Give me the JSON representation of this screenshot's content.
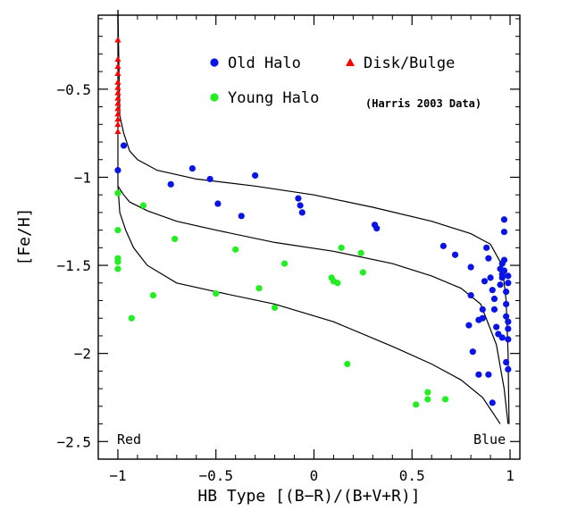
{
  "chart_data": {
    "type": "scatter",
    "title": "",
    "xlabel": "HB Type [(B−R)/(B+V+R)]",
    "ylabel": "[Fe/H]",
    "xlim": [
      -1.1,
      1.05
    ],
    "ylim": [
      -2.6,
      -0.08
    ],
    "y_inverted": true,
    "xticks": [
      -1,
      -0.5,
      0,
      0.5,
      1
    ],
    "xtick_labels": [
      "−1",
      "−0.5",
      "0",
      "0.5",
      "1"
    ],
    "yticks": [
      -0.5,
      -1,
      -1.5,
      -2,
      -2.5
    ],
    "ytick_labels": [
      "−0.5",
      "−1",
      "−1.5",
      "−2",
      "−2.5"
    ],
    "grid": false,
    "legend": {
      "placement": "top",
      "entries": [
        {
          "label": "Old Halo",
          "color": "#0a14e6",
          "marker": "circle"
        },
        {
          "label": "Disk/Bulge",
          "color": "#ff0000",
          "marker": "triangle"
        },
        {
          "label": "Young Halo",
          "color": "#22ee22",
          "marker": "circle"
        }
      ],
      "note": "(Harris 2003 Data)"
    },
    "annotations": {
      "left": "Red",
      "right": "Blue"
    },
    "series": [
      {
        "name": "Old Halo",
        "color": "#0a14e6",
        "marker": "circle",
        "points": [
          [
            -1.0,
            -0.96
          ],
          [
            -0.97,
            -0.82
          ],
          [
            -0.73,
            -1.04
          ],
          [
            -0.62,
            -0.95
          ],
          [
            -0.53,
            -1.01
          ],
          [
            -0.49,
            -1.15
          ],
          [
            -0.37,
            -1.22
          ],
          [
            -0.3,
            -0.99
          ],
          [
            -0.08,
            -1.12
          ],
          [
            -0.07,
            -1.16
          ],
          [
            -0.06,
            -1.2
          ],
          [
            0.31,
            -1.27
          ],
          [
            0.32,
            -1.29
          ],
          [
            0.66,
            -1.39
          ],
          [
            0.72,
            -1.44
          ],
          [
            0.79,
            -1.84
          ],
          [
            0.8,
            -1.51
          ],
          [
            0.8,
            -1.67
          ],
          [
            0.81,
            -1.99
          ],
          [
            0.84,
            -1.81
          ],
          [
            0.84,
            -2.12
          ],
          [
            0.86,
            -1.75
          ],
          [
            0.86,
            -1.8
          ],
          [
            0.87,
            -1.59
          ],
          [
            0.88,
            -1.4
          ],
          [
            0.89,
            -1.46
          ],
          [
            0.89,
            -2.12
          ],
          [
            0.9,
            -1.57
          ],
          [
            0.91,
            -1.64
          ],
          [
            0.91,
            -2.28
          ],
          [
            0.92,
            -1.69
          ],
          [
            0.92,
            -1.75
          ],
          [
            0.93,
            -1.85
          ],
          [
            0.94,
            -1.89
          ],
          [
            0.95,
            -1.52
          ],
          [
            0.95,
            -1.61
          ],
          [
            0.96,
            -1.49
          ],
          [
            0.96,
            -1.55
          ],
          [
            0.96,
            -1.57
          ],
          [
            0.96,
            -1.91
          ],
          [
            0.97,
            -1.24
          ],
          [
            0.97,
            -1.31
          ],
          [
            0.97,
            -1.47
          ],
          [
            0.97,
            -1.53
          ],
          [
            0.98,
            -1.65
          ],
          [
            0.98,
            -1.72
          ],
          [
            0.98,
            -1.79
          ],
          [
            0.98,
            -2.05
          ],
          [
            0.99,
            -1.56
          ],
          [
            0.99,
            -1.6
          ],
          [
            0.99,
            -1.82
          ],
          [
            0.99,
            -1.86
          ],
          [
            0.99,
            -1.92
          ],
          [
            0.99,
            -2.09
          ]
        ]
      },
      {
        "name": "Disk/Bulge",
        "color": "#ff0000",
        "marker": "triangle",
        "points": [
          [
            -1.0,
            -0.22
          ],
          [
            -1.0,
            -0.33
          ],
          [
            -1.0,
            -0.37
          ],
          [
            -1.0,
            -0.41
          ],
          [
            -1.0,
            -0.46
          ],
          [
            -1.0,
            -0.49
          ],
          [
            -1.0,
            -0.52
          ],
          [
            -1.0,
            -0.55
          ],
          [
            -1.0,
            -0.58
          ],
          [
            -1.0,
            -0.61
          ],
          [
            -1.0,
            -0.64
          ],
          [
            -1.0,
            -0.67
          ],
          [
            -1.0,
            -0.7
          ],
          [
            -1.0,
            -0.74
          ]
        ]
      },
      {
        "name": "Young Halo",
        "color": "#22ee22",
        "marker": "circle",
        "points": [
          [
            -1.0,
            -1.09
          ],
          [
            -1.0,
            -1.3
          ],
          [
            -1.0,
            -1.46
          ],
          [
            -1.0,
            -1.48
          ],
          [
            -1.0,
            -1.52
          ],
          [
            -0.93,
            -1.8
          ],
          [
            -0.87,
            -1.16
          ],
          [
            -0.82,
            -1.67
          ],
          [
            -0.71,
            -1.35
          ],
          [
            -0.5,
            -1.66
          ],
          [
            -0.4,
            -1.41
          ],
          [
            -0.28,
            -1.63
          ],
          [
            -0.2,
            -1.74
          ],
          [
            -0.15,
            -1.49
          ],
          [
            0.09,
            -1.57
          ],
          [
            0.1,
            -1.59
          ],
          [
            0.12,
            -1.6
          ],
          [
            0.14,
            -1.4
          ],
          [
            0.17,
            -2.06
          ],
          [
            0.24,
            -1.43
          ],
          [
            0.25,
            -1.54
          ],
          [
            0.52,
            -2.29
          ],
          [
            0.58,
            -2.22
          ],
          [
            0.58,
            -2.26
          ],
          [
            0.67,
            -2.26
          ]
        ]
      }
    ],
    "model_curves": [
      {
        "points": [
          [
            -1.0,
            -0.05
          ],
          [
            -0.99,
            -0.65
          ],
          [
            -0.97,
            -0.75
          ],
          [
            -0.94,
            -0.85
          ],
          [
            -0.9,
            -0.9
          ],
          [
            -0.8,
            -0.96
          ],
          [
            -0.6,
            -1.01
          ],
          [
            -0.3,
            -1.05
          ],
          [
            0.0,
            -1.1
          ],
          [
            0.3,
            -1.17
          ],
          [
            0.6,
            -1.25
          ],
          [
            0.8,
            -1.32
          ],
          [
            0.9,
            -1.38
          ],
          [
            0.96,
            -1.5
          ],
          [
            0.98,
            -1.7
          ],
          [
            0.99,
            -2.0
          ],
          [
            0.995,
            -2.4
          ]
        ]
      },
      {
        "points": [
          [
            -1.0,
            -0.05
          ],
          [
            -1.0,
            -1.05
          ],
          [
            -0.97,
            -1.1
          ],
          [
            -0.94,
            -1.14
          ],
          [
            -0.85,
            -1.19
          ],
          [
            -0.7,
            -1.25
          ],
          [
            -0.5,
            -1.3
          ],
          [
            -0.2,
            -1.37
          ],
          [
            0.1,
            -1.42
          ],
          [
            0.4,
            -1.49
          ],
          [
            0.6,
            -1.56
          ],
          [
            0.75,
            -1.63
          ],
          [
            0.85,
            -1.72
          ],
          [
            0.93,
            -1.95
          ],
          [
            0.97,
            -2.2
          ],
          [
            0.99,
            -2.4
          ]
        ]
      },
      {
        "points": [
          [
            -1.0,
            -1.05
          ],
          [
            -0.99,
            -1.2
          ],
          [
            -0.96,
            -1.3
          ],
          [
            -0.92,
            -1.4
          ],
          [
            -0.85,
            -1.5
          ],
          [
            -0.7,
            -1.6
          ],
          [
            -0.5,
            -1.65
          ],
          [
            -0.2,
            -1.72
          ],
          [
            0.1,
            -1.82
          ],
          [
            0.4,
            -1.96
          ],
          [
            0.6,
            -2.06
          ],
          [
            0.75,
            -2.15
          ],
          [
            0.86,
            -2.25
          ],
          [
            0.92,
            -2.35
          ],
          [
            0.95,
            -2.4
          ]
        ]
      }
    ]
  }
}
